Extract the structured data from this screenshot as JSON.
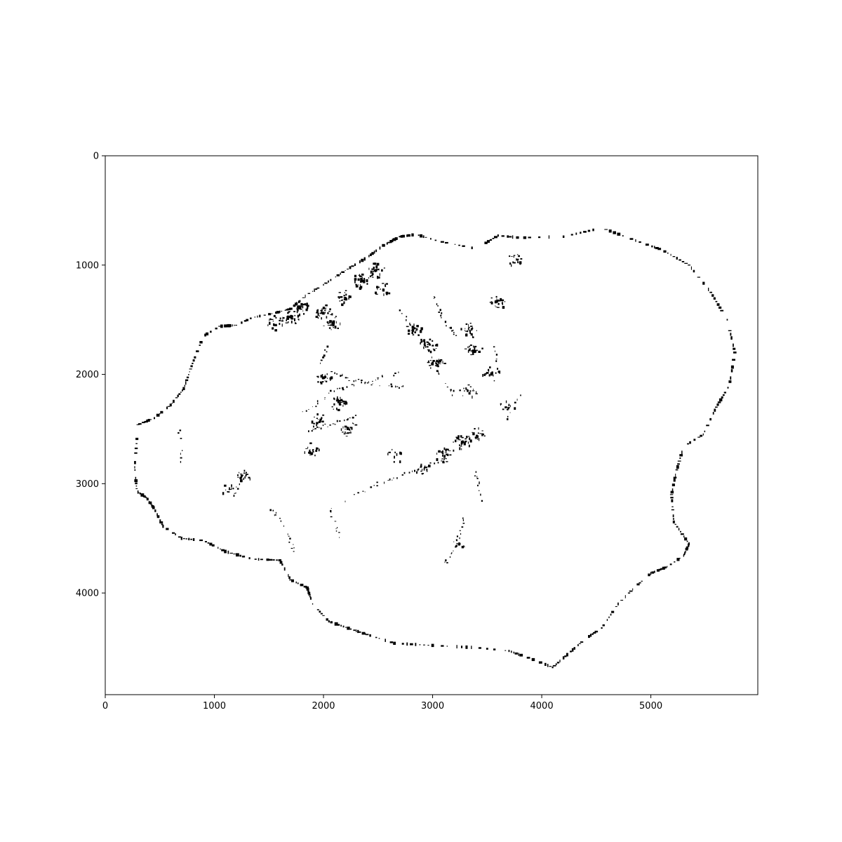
{
  "chart_data": {
    "type": "heatmap",
    "title": "",
    "xlabel": "",
    "ylabel": "",
    "xlim": [
      0,
      5980
    ],
    "ylim": [
      4930,
      0
    ],
    "y_inverted": true,
    "grid": false,
    "colormap": "binary (black on white)",
    "x_ticks": [
      0,
      1000,
      2000,
      3000,
      4000,
      5000
    ],
    "y_ticks": [
      0,
      1000,
      2000,
      3000,
      4000
    ],
    "x_tick_labels": [
      "0",
      "1000",
      "2000",
      "3000",
      "4000",
      "5000"
    ],
    "y_tick_labels": [
      "0",
      "1000",
      "2000",
      "3000",
      "4000"
    ],
    "boundary_outline": [
      [
        2850,
        720
      ],
      [
        3050,
        780
      ],
      [
        3400,
        850
      ],
      [
        3600,
        730
      ],
      [
        3800,
        750
      ],
      [
        4200,
        740
      ],
      [
        4550,
        660
      ],
      [
        4900,
        790
      ],
      [
        5100,
        860
      ],
      [
        5350,
        1000
      ],
      [
        5550,
        1250
      ],
      [
        5700,
        1500
      ],
      [
        5770,
        1800
      ],
      [
        5720,
        2100
      ],
      [
        5600,
        2300
      ],
      [
        5480,
        2550
      ],
      [
        5300,
        2660
      ],
      [
        5230,
        2900
      ],
      [
        5190,
        3100
      ],
      [
        5210,
        3350
      ],
      [
        5350,
        3550
      ],
      [
        5300,
        3660
      ],
      [
        5150,
        3760
      ],
      [
        5000,
        3820
      ],
      [
        4850,
        3950
      ],
      [
        4700,
        4100
      ],
      [
        4550,
        4320
      ],
      [
        4400,
        4420
      ],
      [
        4250,
        4550
      ],
      [
        4100,
        4680
      ],
      [
        3900,
        4600
      ],
      [
        3700,
        4530
      ],
      [
        3400,
        4500
      ],
      [
        3000,
        4480
      ],
      [
        2650,
        4460
      ],
      [
        2400,
        4380
      ],
      [
        2250,
        4330
      ],
      [
        2050,
        4260
      ],
      [
        1900,
        4100
      ],
      [
        1850,
        3950
      ],
      [
        1700,
        3880
      ],
      [
        1600,
        3700
      ],
      [
        1350,
        3690
      ],
      [
        1100,
        3620
      ],
      [
        900,
        3520
      ],
      [
        700,
        3500
      ],
      [
        530,
        3390
      ],
      [
        450,
        3230
      ],
      [
        380,
        3130
      ],
      [
        290,
        3070
      ],
      [
        270,
        2850
      ],
      [
        300,
        2460
      ],
      [
        450,
        2400
      ],
      [
        600,
        2280
      ],
      [
        720,
        2130
      ],
      [
        800,
        1900
      ],
      [
        900,
        1650
      ],
      [
        1050,
        1560
      ],
      [
        1200,
        1550
      ],
      [
        1350,
        1480
      ],
      [
        1550,
        1440
      ],
      [
        1700,
        1400
      ],
      [
        1850,
        1270
      ],
      [
        2000,
        1180
      ],
      [
        2200,
        1050
      ],
      [
        2400,
        930
      ],
      [
        2550,
        820
      ],
      [
        2700,
        740
      ],
      [
        2850,
        720
      ]
    ],
    "dense_clusters": [
      [
        1550,
        1530,
        6
      ],
      [
        1700,
        1480,
        12
      ],
      [
        1780,
        1390,
        14
      ],
      [
        2000,
        1430,
        10
      ],
      [
        2080,
        1530,
        8
      ],
      [
        2200,
        1300,
        8
      ],
      [
        2350,
        1150,
        10
      ],
      [
        2480,
        1050,
        12
      ],
      [
        2550,
        1230,
        6
      ],
      [
        2830,
        1580,
        8
      ],
      [
        2960,
        1740,
        10
      ],
      [
        3040,
        1900,
        8
      ],
      [
        3340,
        1600,
        10
      ],
      [
        3380,
        1780,
        8
      ],
      [
        3600,
        1330,
        8
      ],
      [
        3540,
        2000,
        6
      ],
      [
        3330,
        2160,
        6
      ],
      [
        2000,
        2030,
        8
      ],
      [
        2150,
        2270,
        10
      ],
      [
        2230,
        2500,
        8
      ],
      [
        1960,
        2430,
        6
      ],
      [
        1880,
        2700,
        6
      ],
      [
        2900,
        2850,
        6
      ],
      [
        3100,
        2740,
        8
      ],
      [
        3270,
        2620,
        10
      ],
      [
        3400,
        2560,
        8
      ],
      [
        1250,
        2930,
        6
      ],
      [
        1150,
        3050,
        4
      ],
      [
        3770,
        950,
        6
      ],
      [
        3700,
        2300,
        4
      ],
      [
        2650,
        2750,
        4
      ],
      [
        3250,
        3550,
        4
      ]
    ],
    "ridge_lines": [
      [
        [
          2050,
          1950
        ],
        [
          2250,
          2050
        ],
        [
          2550,
          2100
        ],
        [
          2850,
          2120
        ]
      ],
      [
        [
          1820,
          2350
        ],
        [
          2100,
          2150
        ],
        [
          2400,
          2070
        ],
        [
          2700,
          1980
        ]
      ],
      [
        [
          1850,
          2520
        ],
        [
          2050,
          2460
        ],
        [
          2300,
          2380
        ]
      ],
      [
        [
          2200,
          3150
        ],
        [
          2500,
          3000
        ],
        [
          2800,
          2900
        ],
        [
          3100,
          2780
        ],
        [
          3300,
          2600
        ]
      ],
      [
        [
          1300,
          2900
        ],
        [
          1150,
          3150
        ]
      ],
      [
        [
          2700,
          1400
        ],
        [
          2900,
          1700
        ],
        [
          3050,
          1950
        ],
        [
          3200,
          2200
        ]
      ],
      [
        [
          3000,
          1280
        ],
        [
          3100,
          1500
        ],
        [
          3250,
          1700
        ]
      ],
      [
        [
          3550,
          1700
        ],
        [
          3620,
          2000
        ]
      ],
      [
        [
          2050,
          3200
        ],
        [
          2150,
          3500
        ]
      ],
      [
        [
          3300,
          3300
        ],
        [
          3200,
          3600
        ],
        [
          3100,
          3750
        ]
      ],
      [
        [
          1500,
          3200
        ],
        [
          1650,
          3400
        ],
        [
          1750,
          3650
        ]
      ],
      [
        [
          3400,
          2900
        ],
        [
          3450,
          3200
        ]
      ],
      [
        [
          3800,
          2200
        ],
        [
          3650,
          2450
        ]
      ],
      [
        [
          680,
          2400
        ],
        [
          700,
          2900
        ]
      ],
      [
        [
          1950,
          1900
        ],
        [
          2080,
          1700
        ]
      ]
    ]
  }
}
